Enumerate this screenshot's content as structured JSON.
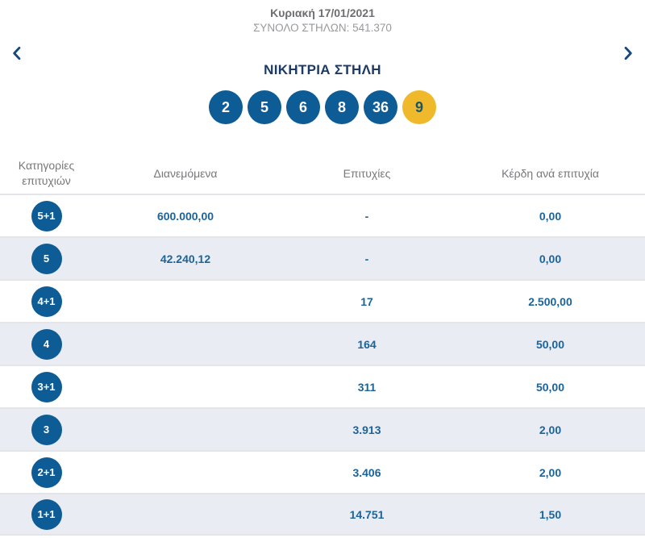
{
  "header": {
    "date": "Κυριακή 17/01/2021",
    "total_columns": "ΣΥΝΟΛΟ ΣΤΗΛΩΝ: 541.370"
  },
  "winning_column": {
    "title": "ΝΙΚΗΤΡΙΑ ΣΤΗΛΗ",
    "numbers": [
      "2",
      "5",
      "6",
      "8",
      "36"
    ],
    "joker": "9"
  },
  "table": {
    "headers": {
      "category": "Κατηγορίες επιτυχιών",
      "distributed": "Διανεμόμενα",
      "winners": "Επιτυχίες",
      "payout": "Κέρδη ανά επιτυχία"
    },
    "rows": [
      {
        "category": "5+1",
        "distributed": "600.000,00",
        "winners": "-",
        "payout": "0,00"
      },
      {
        "category": "5",
        "distributed": "42.240,12",
        "winners": "-",
        "payout": "0,00"
      },
      {
        "category": "4+1",
        "distributed": "",
        "winners": "17",
        "payout": "2.500,00"
      },
      {
        "category": "4",
        "distributed": "",
        "winners": "164",
        "payout": "50,00"
      },
      {
        "category": "3+1",
        "distributed": "",
        "winners": "311",
        "payout": "50,00"
      },
      {
        "category": "3",
        "distributed": "",
        "winners": "3.913",
        "payout": "2,00"
      },
      {
        "category": "2+1",
        "distributed": "",
        "winners": "3.406",
        "payout": "2,00"
      },
      {
        "category": "1+1",
        "distributed": "",
        "winners": "14.751",
        "payout": "1,50"
      }
    ]
  },
  "colors": {
    "ball_blue": "#0e5c95",
    "joker_yellow": "#f0b92c",
    "joker_text": "#19566b",
    "value_blue": "#1c6399",
    "title_navy": "#1b3a66",
    "chevron_navy": "#14477e",
    "alt_row_bg": "#e9edf3"
  }
}
